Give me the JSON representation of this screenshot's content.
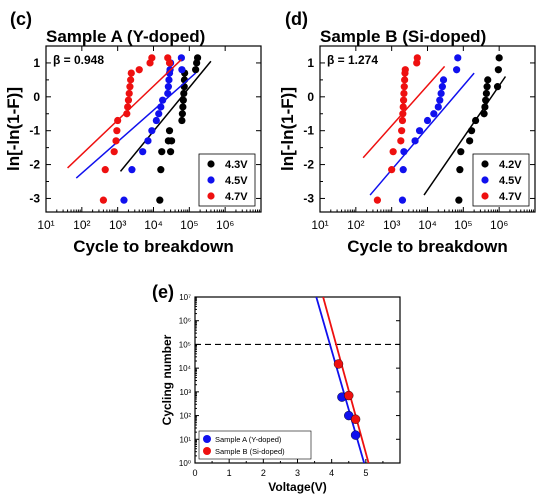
{
  "figure": {
    "panels": [
      {
        "label": "(c)",
        "title": "Sample A (Y-doped)",
        "beta": "β = 0.948"
      },
      {
        "label": "(d)",
        "title": "Sample B (Si-doped)",
        "beta": "β = 1.274"
      },
      {
        "label": "(e)"
      }
    ]
  },
  "colors": {
    "black": "#000000",
    "blue": "#1010ee",
    "red": "#ee1010"
  },
  "chart_data": [
    {
      "type": "scatter",
      "title": "Sample A (Y-doped)",
      "annotation": "β = 0.948",
      "xlabel": "Cycle to breakdown",
      "ylabel": "ln[-ln(1-F)]",
      "xscale": "log",
      "xlim": [
        10,
        10000000
      ],
      "ylim": [
        -3.4,
        1.5
      ],
      "x_tick_labels": [
        "10¹",
        "10²",
        "10³",
        "10⁴",
        "10⁵",
        "10⁶"
      ],
      "y_tick_labels": [
        "-3",
        "-2",
        "-1",
        "0",
        "1"
      ],
      "legend_position": "bottom-right",
      "series": [
        {
          "name": "4.3V",
          "color": "#000000",
          "x": [
            15000,
            16000,
            17000,
            26000,
            28000,
            30000,
            32000,
            62000,
            64000,
            66000,
            68000,
            70000,
            72000,
            73000,
            74000,
            150000,
            160000,
            170000
          ],
          "y": [
            -3.05,
            -2.15,
            -1.62,
            -1.3,
            -1.0,
            -1.62,
            -1.3,
            -0.7,
            -0.5,
            -0.3,
            -0.1,
            0.1,
            0.3,
            0.5,
            0.7,
            0.8,
            1.0,
            1.15
          ],
          "fit": {
            "x": [
              1200,
              400000
            ],
            "y": [
              -2.2,
              1.05
            ]
          }
        },
        {
          "name": "4.5V",
          "color": "#1010ee",
          "x": [
            1500,
            2500,
            5000,
            7000,
            9000,
            12000,
            14000,
            16000,
            18000,
            25000,
            26000,
            27000,
            28000,
            29000,
            30000,
            60000,
            62000
          ],
          "y": [
            -3.05,
            -2.15,
            -1.62,
            -1.3,
            -1.0,
            -0.7,
            -0.5,
            -0.3,
            -0.1,
            0.1,
            0.3,
            0.5,
            0.7,
            0.8,
            1.0,
            1.15,
            0.8
          ],
          "fit": {
            "x": [
              70,
              150000
            ],
            "y": [
              -2.4,
              0.7
            ]
          }
        },
        {
          "name": "4.7V",
          "color": "#ee1010",
          "x": [
            400,
            450,
            800,
            900,
            950,
            1000,
            1800,
            1900,
            2000,
            2100,
            2200,
            2300,
            2400,
            4000,
            8000,
            9000,
            25000,
            28000
          ],
          "y": [
            -3.05,
            -2.15,
            -1.62,
            -1.3,
            -1.0,
            -0.7,
            -0.5,
            -0.3,
            -0.1,
            0.1,
            0.3,
            0.5,
            0.7,
            0.8,
            1.0,
            1.15,
            1.15,
            1.0
          ],
          "fit": {
            "x": [
              40,
              60000
            ],
            "y": [
              -2.1,
              1.1
            ]
          }
        }
      ]
    },
    {
      "type": "scatter",
      "title": "Sample B (Si-doped)",
      "annotation": "β = 1.274",
      "xlabel": "Cycle to breakdown",
      "ylabel": "ln[-ln(1-F)]",
      "xscale": "log",
      "xlim": [
        10,
        10000000
      ],
      "ylim": [
        -3.4,
        1.5
      ],
      "x_tick_labels": [
        "10¹",
        "10²",
        "10³",
        "10⁴",
        "10⁵",
        "10⁶"
      ],
      "y_tick_labels": [
        "-3",
        "-2",
        "-1",
        "0",
        "1"
      ],
      "legend_position": "bottom-right",
      "series": [
        {
          "name": "4.2V",
          "color": "#000000",
          "x": [
            75000,
            80000,
            85000,
            150000,
            170000,
            220000,
            380000,
            400000,
            420000,
            440000,
            460000,
            480000,
            900000,
            950000,
            1000000
          ],
          "y": [
            -3.05,
            -2.15,
            -1.62,
            -1.3,
            -1.0,
            -0.7,
            -0.5,
            -0.3,
            -0.1,
            0.1,
            0.3,
            0.5,
            0.3,
            0.8,
            1.15
          ],
          "fit": {
            "x": [
              8000,
              1500000
            ],
            "y": [
              -2.9,
              0.6
            ]
          }
        },
        {
          "name": "4.5V",
          "color": "#1010ee",
          "x": [
            2000,
            2100,
            2200,
            4500,
            6000,
            10000,
            15000,
            20000,
            22000,
            24000,
            26000,
            28000,
            65000,
            70000
          ],
          "y": [
            -3.05,
            -2.15,
            -1.62,
            -1.3,
            -1.0,
            -0.7,
            -0.5,
            -0.3,
            -0.1,
            0.1,
            0.3,
            0.5,
            0.8,
            1.15
          ],
          "fit": {
            "x": [
              250,
              200000
            ],
            "y": [
              -2.9,
              0.7
            ]
          }
        },
        {
          "name": "4.7V",
          "color": "#ee1010",
          "x": [
            400,
            1000,
            1100,
            1800,
            1900,
            2000,
            2050,
            2100,
            2150,
            2200,
            2250,
            2300,
            2350,
            2400,
            5000,
            5200
          ],
          "y": [
            -3.05,
            -2.15,
            -1.62,
            -1.3,
            -1.0,
            -0.7,
            -0.5,
            -0.3,
            -0.1,
            0.1,
            0.3,
            0.5,
            0.7,
            0.8,
            1.0,
            1.15
          ],
          "fit": {
            "x": [
              160,
              30000
            ],
            "y": [
              -1.8,
              0.9
            ]
          }
        }
      ]
    },
    {
      "type": "scatter",
      "xlabel": "Voltage(V)",
      "ylabel": "Cycling number",
      "yscale": "log",
      "xlim": [
        0,
        6
      ],
      "ylim": [
        1,
        10000000
      ],
      "x_tick_labels": [
        "0",
        "1",
        "2",
        "3",
        "4",
        "5"
      ],
      "y_tick_labels": [
        "10⁰",
        "10¹",
        "10²",
        "10³",
        "10⁴",
        "10⁵",
        "10⁶",
        "10⁷"
      ],
      "reference_line_y": 100000,
      "legend_position": "bottom-left",
      "series": [
        {
          "name": "Sample A (Y-doped)",
          "color": "#1010ee",
          "x": [
            4.3,
            4.5,
            4.7
          ],
          "y": [
            600,
            100,
            15
          ],
          "fit": {
            "x": [
              3.55,
              4.95
            ],
            "y": [
              10000000,
              1
            ]
          }
        },
        {
          "name": "Sample B (Si-doped)",
          "color": "#ee1010",
          "x": [
            4.2,
            4.5,
            4.7
          ],
          "y": [
            15000,
            700,
            70
          ],
          "fit": {
            "x": [
              3.75,
              5.08
            ],
            "y": [
              10000000,
              1
            ]
          }
        }
      ]
    }
  ]
}
